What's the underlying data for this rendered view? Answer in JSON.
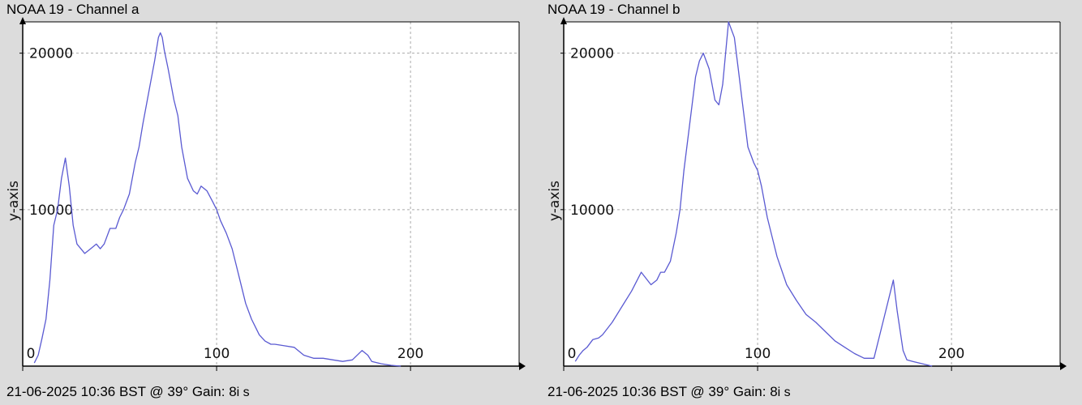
{
  "charts": [
    {
      "title": "NOAA 19 - Channel a",
      "footer": "21-06-2025 10:36 BST @ 39° Gain: 8",
      "footer_suffix": "i s",
      "ylabel": "y-axis",
      "x_ticks": [
        {
          "value": 0,
          "label": "0"
        },
        {
          "value": 100,
          "label": "100"
        },
        {
          "value": 200,
          "label": "200"
        }
      ],
      "y_ticks": [
        {
          "value": 10000,
          "label": "10000"
        },
        {
          "value": 20000,
          "label": "20000"
        }
      ]
    },
    {
      "title": "NOAA 19 - Channel b",
      "footer": "21-06-2025 10:36 BST @ 39° Gain: 8",
      "footer_suffix": "i s",
      "ylabel": "y-axis",
      "x_ticks": [
        {
          "value": 0,
          "label": "0"
        },
        {
          "value": 100,
          "label": "100"
        },
        {
          "value": 200,
          "label": "200"
        }
      ],
      "y_ticks": [
        {
          "value": 10000,
          "label": "10000"
        },
        {
          "value": 20000,
          "label": "20000"
        }
      ]
    }
  ],
  "colors": {
    "line": "#5a5ad2",
    "grid": "#aaaaaa",
    "plot_bg": "#ffffff",
    "window_bg": "#dcdcdc"
  },
  "chart_data": [
    {
      "type": "line",
      "title": "NOAA 19 - Channel a",
      "ylabel": "y-axis",
      "xlim": [
        0,
        256
      ],
      "ylim": [
        0,
        22000
      ],
      "grid": true,
      "series": [
        {
          "x": [
            6,
            8,
            10,
            12,
            14,
            16,
            18,
            20,
            22,
            24,
            26,
            28,
            30,
            32,
            35,
            38,
            40,
            42,
            45,
            48,
            50,
            52,
            55,
            58,
            60,
            62,
            65,
            68,
            70,
            71,
            72,
            73,
            75,
            78,
            80,
            82,
            85,
            88,
            90,
            92,
            95,
            98,
            100,
            102,
            105,
            108,
            110,
            112,
            115,
            118,
            120,
            122,
            125,
            128,
            130,
            135,
            140,
            145,
            150,
            155,
            160,
            165,
            170,
            175,
            178,
            180,
            185,
            190,
            195
          ],
          "y": [
            200,
            700,
            1800,
            3000,
            5500,
            9000,
            10000,
            12000,
            13300,
            11500,
            9000,
            7800,
            7500,
            7200,
            7500,
            7800,
            7500,
            7800,
            8800,
            8800,
            9500,
            10000,
            11000,
            13000,
            14000,
            15500,
            17500,
            19500,
            21000,
            21300,
            21000,
            20200,
            19000,
            17000,
            16000,
            14000,
            12000,
            11200,
            11000,
            11500,
            11200,
            10500,
            10000,
            9300,
            8500,
            7500,
            6500,
            5500,
            4000,
            3000,
            2500,
            2000,
            1600,
            1400,
            1400,
            1300,
            1200,
            700,
            500,
            500,
            400,
            300,
            400,
            1000,
            700,
            300,
            150,
            50,
            0
          ]
        }
      ]
    },
    {
      "type": "line",
      "title": "NOAA 19 - Channel b",
      "ylabel": "y-axis",
      "xlim": [
        0,
        256
      ],
      "ylim": [
        0,
        22000
      ],
      "grid": true,
      "series": [
        {
          "x": [
            6,
            8,
            10,
            12,
            15,
            18,
            20,
            25,
            30,
            35,
            40,
            45,
            48,
            50,
            52,
            55,
            58,
            60,
            62,
            65,
            68,
            70,
            72,
            75,
            78,
            80,
            82,
            85,
            88,
            90,
            92,
            95,
            98,
            100,
            102,
            105,
            108,
            110,
            115,
            120,
            125,
            130,
            135,
            140,
            145,
            150,
            155,
            160,
            165,
            170,
            172,
            175,
            177,
            180,
            185,
            190
          ],
          "y": [
            300,
            700,
            1000,
            1200,
            1700,
            1800,
            2000,
            2800,
            3800,
            4800,
            6000,
            5200,
            5500,
            6000,
            6000,
            6700,
            8500,
            10000,
            12500,
            15500,
            18500,
            19500,
            20000,
            19000,
            17000,
            16700,
            18000,
            22000,
            21000,
            19000,
            17000,
            14000,
            13000,
            12500,
            11500,
            9500,
            8000,
            7000,
            5200,
            4200,
            3300,
            2800,
            2200,
            1600,
            1200,
            800,
            500,
            500,
            3000,
            5500,
            3500,
            1000,
            400,
            300,
            150,
            0
          ]
        }
      ]
    }
  ]
}
